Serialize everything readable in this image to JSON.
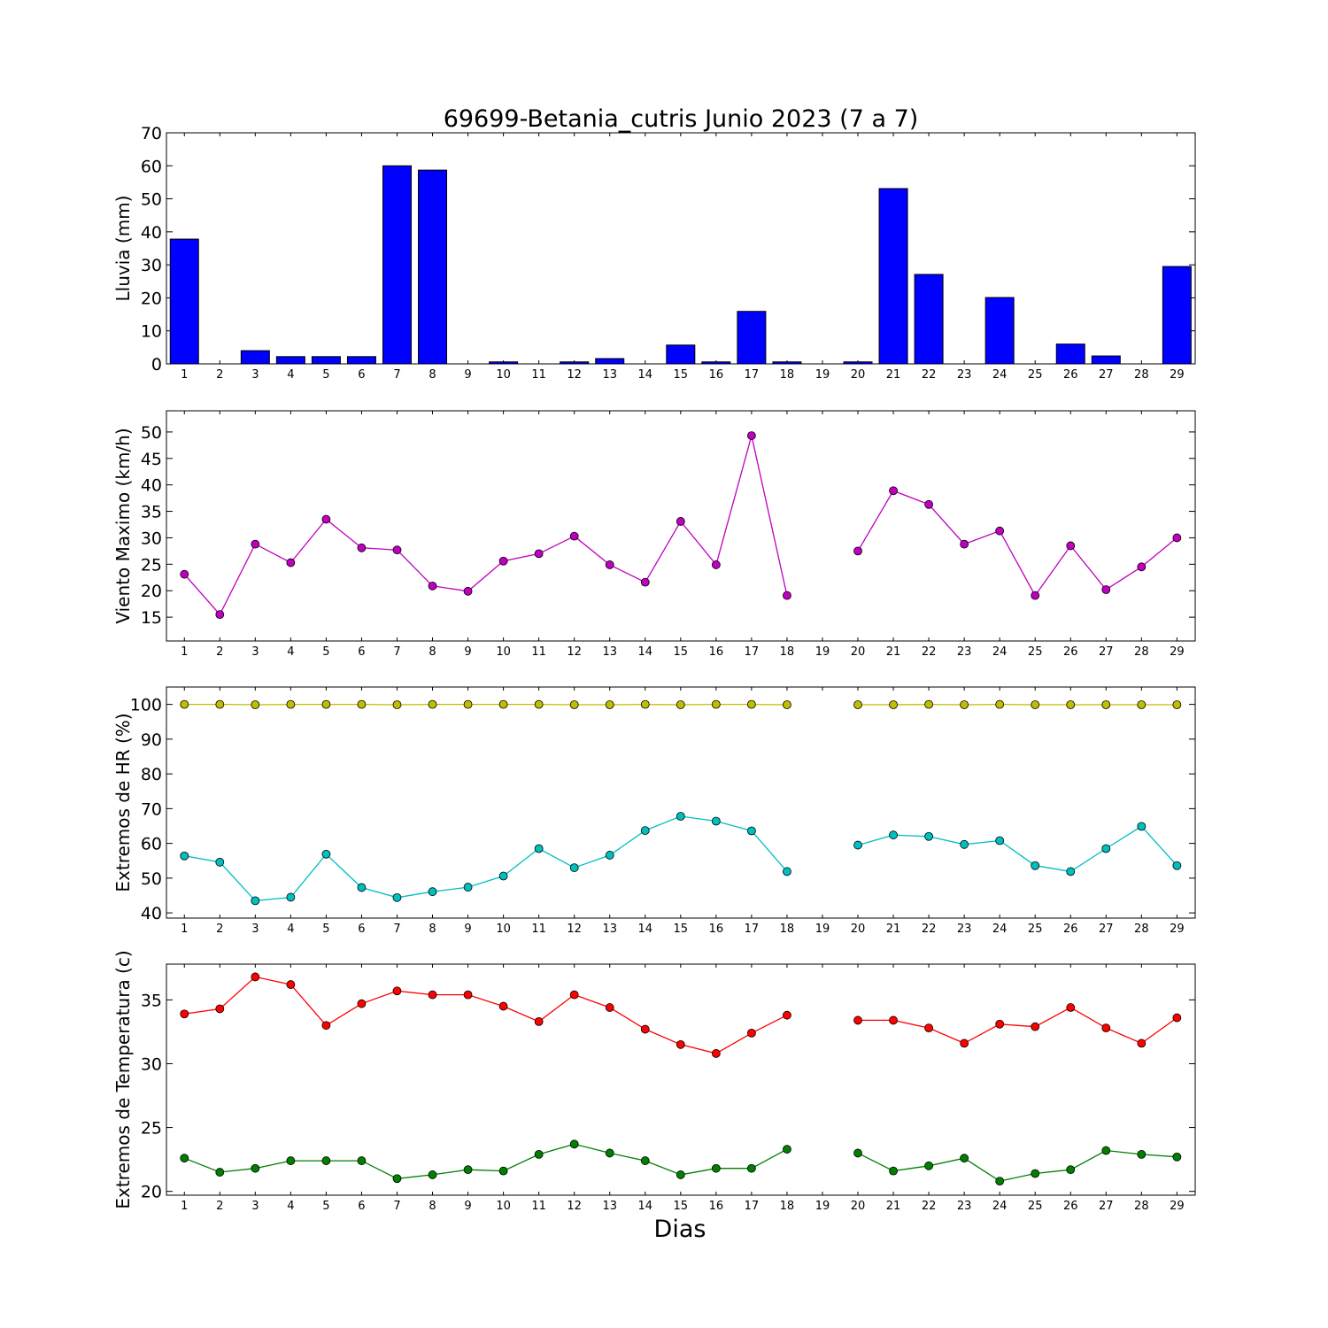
{
  "title": "69699-Betania_cutris Junio 2023  (7 a 7)",
  "xlabel": "Dias",
  "chart_data": [
    {
      "type": "bar",
      "ylabel": "Lluvia (mm)",
      "ylim": [
        0,
        70
      ],
      "yticks": [
        0,
        10,
        20,
        30,
        40,
        50,
        60,
        70
      ],
      "categories": [
        1,
        2,
        3,
        4,
        5,
        6,
        7,
        8,
        9,
        10,
        11,
        12,
        13,
        14,
        15,
        16,
        17,
        18,
        19,
        20,
        21,
        22,
        23,
        24,
        25,
        26,
        27,
        28,
        29
      ],
      "series": [
        {
          "color": "#0000ff",
          "values": [
            37.8,
            0,
            4,
            2.2,
            2.2,
            2.2,
            60,
            58.7,
            0,
            0.6,
            0,
            0.6,
            1.6,
            0,
            5.7,
            0.6,
            15.9,
            0.6,
            0,
            0.6,
            53.1,
            27.1,
            0,
            20.1,
            0,
            6,
            2.4,
            0,
            29.5
          ]
        }
      ]
    },
    {
      "type": "line",
      "ylabel": "Viento Maximo (km/h)",
      "ylim": [
        10.5,
        54
      ],
      "yticks": [
        15,
        20,
        25,
        30,
        35,
        40,
        45,
        50
      ],
      "categories": [
        1,
        2,
        3,
        4,
        5,
        6,
        7,
        8,
        9,
        10,
        11,
        12,
        13,
        14,
        15,
        16,
        17,
        18,
        19,
        20,
        21,
        22,
        23,
        24,
        25,
        26,
        27,
        28,
        29
      ],
      "series": [
        {
          "color": "#bf00bf",
          "values": [
            23.1,
            15.5,
            28.8,
            25.3,
            33.5,
            28.1,
            27.7,
            20.9,
            19.9,
            25.6,
            27.0,
            30.3,
            24.9,
            21.6,
            33.1,
            24.9,
            49.3,
            19.1,
            null,
            27.5,
            38.9,
            36.3,
            28.8,
            31.3,
            19.1,
            28.5,
            20.2,
            24.5,
            30.0
          ]
        }
      ]
    },
    {
      "type": "line",
      "ylabel": "Extremos de HR (%)",
      "ylim": [
        38.5,
        105
      ],
      "yticks": [
        40,
        50,
        60,
        70,
        80,
        90,
        100
      ],
      "categories": [
        1,
        2,
        3,
        4,
        5,
        6,
        7,
        8,
        9,
        10,
        11,
        12,
        13,
        14,
        15,
        16,
        17,
        18,
        19,
        20,
        21,
        22,
        23,
        24,
        25,
        26,
        27,
        28,
        29
      ],
      "series": [
        {
          "color": "#bfbf00",
          "values": [
            100,
            100,
            99.9,
            100,
            100,
            100,
            99.9,
            100,
            100,
            100,
            100,
            99.9,
            99.9,
            100,
            99.9,
            100,
            100,
            99.9,
            null,
            99.9,
            99.9,
            100,
            99.9,
            100,
            99.9,
            99.9,
            99.9,
            99.9,
            99.9
          ]
        },
        {
          "color": "#00bfbf",
          "values": [
            56.4,
            54.6,
            43.5,
            44.5,
            56.9,
            47.3,
            44.4,
            46.1,
            47.4,
            50.6,
            58.5,
            53.0,
            56.6,
            63.7,
            67.8,
            66.4,
            63.6,
            51.9,
            null,
            59.5,
            62.4,
            62.0,
            59.7,
            60.8,
            53.6,
            51.9,
            58.5,
            64.9,
            53.6
          ]
        }
      ]
    },
    {
      "type": "line",
      "ylabel": "Extremos de Temperatura (c)",
      "ylim": [
        19.7,
        37.8
      ],
      "yticks": [
        20,
        25,
        30,
        35
      ],
      "categories": [
        1,
        2,
        3,
        4,
        5,
        6,
        7,
        8,
        9,
        10,
        11,
        12,
        13,
        14,
        15,
        16,
        17,
        18,
        19,
        20,
        21,
        22,
        23,
        24,
        25,
        26,
        27,
        28,
        29
      ],
      "series": [
        {
          "color": "#ff0000",
          "values": [
            33.9,
            34.3,
            36.8,
            36.2,
            33.0,
            34.7,
            35.7,
            35.4,
            35.4,
            34.5,
            33.3,
            35.4,
            34.4,
            32.7,
            31.5,
            30.8,
            32.4,
            33.8,
            null,
            33.4,
            33.4,
            32.8,
            31.6,
            33.1,
            32.9,
            34.4,
            32.8,
            31.6,
            33.6
          ]
        },
        {
          "color": "#007f00",
          "values": [
            22.6,
            21.5,
            21.8,
            22.4,
            22.4,
            22.4,
            21.0,
            21.3,
            21.7,
            21.6,
            22.9,
            23.7,
            23.0,
            22.4,
            21.3,
            21.8,
            21.8,
            23.3,
            null,
            23.0,
            21.6,
            22.0,
            22.6,
            20.8,
            21.4,
            21.7,
            23.2,
            22.9,
            22.7
          ]
        }
      ]
    }
  ]
}
